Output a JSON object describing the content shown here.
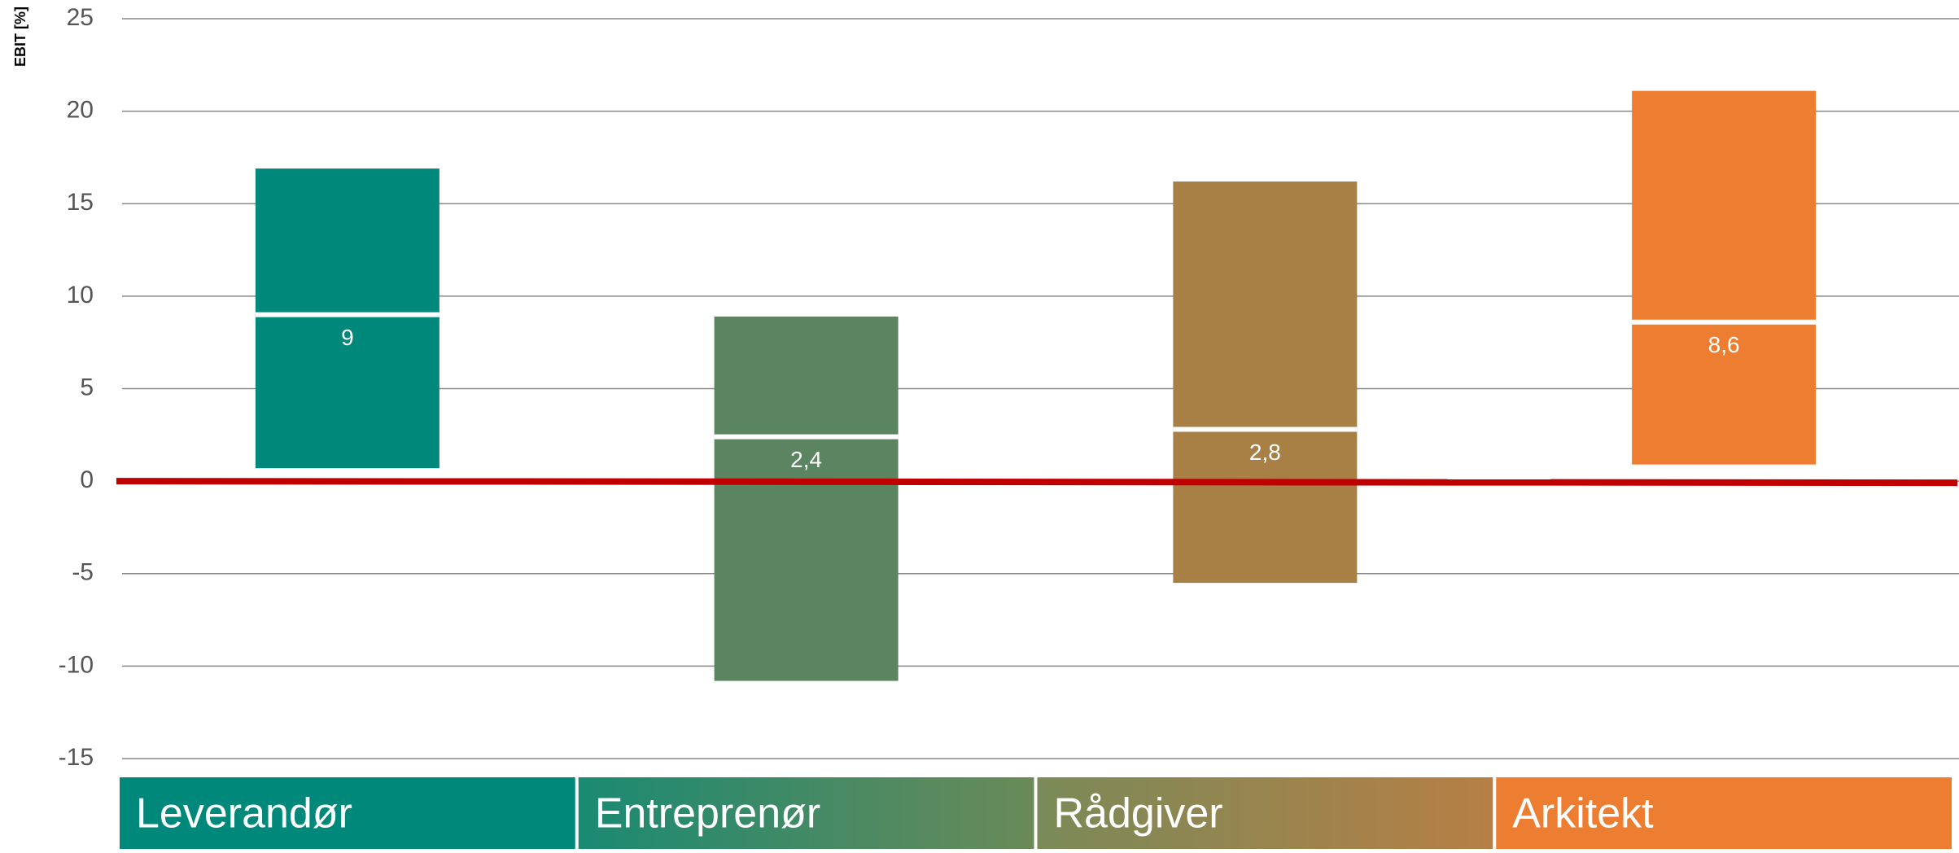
{
  "chart_data": {
    "type": "range-bar",
    "y_label": "EBIT [%]",
    "categories": [
      "Leverandør",
      "Entreprenør",
      "Rådgiver",
      "Arkitekt"
    ],
    "low": [
      0.7,
      -10.8,
      -5.5,
      0.9
    ],
    "high": [
      16.9,
      8.9,
      16.2,
      21.1
    ],
    "median": [
      9,
      2.4,
      2.8,
      8.6
    ],
    "value_labels": [
      "9",
      "2,4",
      "2,8",
      "8,6"
    ],
    "colors": [
      "#00897a",
      "#5b8560",
      "#a88046",
      "#ed7d31"
    ],
    "reference_line": 0,
    "reference_color": "#c00000",
    "ylim": [
      -15,
      25
    ],
    "yticks": [
      -15,
      -10,
      -5,
      0,
      5,
      10,
      15,
      20,
      25
    ],
    "grid": true
  }
}
